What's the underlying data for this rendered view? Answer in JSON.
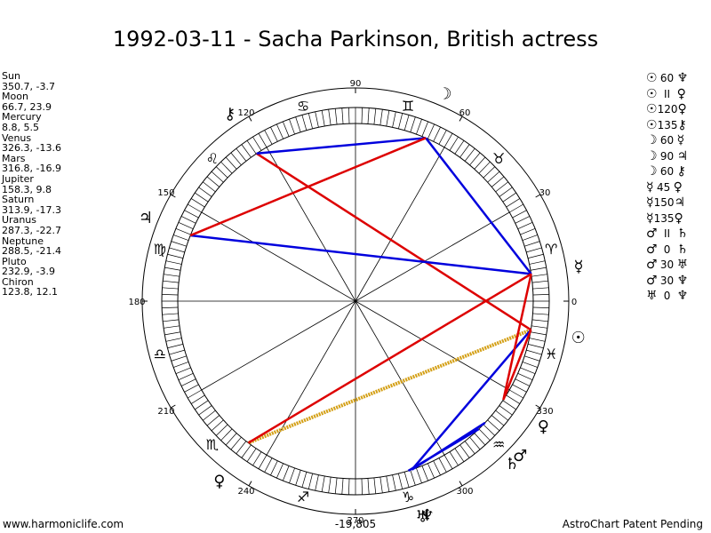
{
  "title": "1992-03-11 - Sacha Parkinson, British actress",
  "planets": [
    {
      "name": "Sun",
      "position": "350.7, -3.7",
      "lon": 350.7,
      "glyph": "☉"
    },
    {
      "name": "Moon",
      "position": "66.7, 23.9",
      "lon": 66.7,
      "glyph": "☽"
    },
    {
      "name": "Mercury",
      "position": "8.8, 5.5",
      "lon": 8.8,
      "glyph": "☿"
    },
    {
      "name": "Venus",
      "position": "326.3, -13.6",
      "lon": 326.3,
      "glyph": "♀"
    },
    {
      "name": "Mars",
      "position": "316.8, -16.9",
      "lon": 316.8,
      "glyph": "♂"
    },
    {
      "name": "Jupiter",
      "position": "158.3, 9.8",
      "lon": 158.3,
      "glyph": "♃"
    },
    {
      "name": "Saturn",
      "position": "313.9, -17.3",
      "lon": 313.9,
      "glyph": "♄"
    },
    {
      "name": "Uranus",
      "position": "287.3, -22.7",
      "lon": 287.3,
      "glyph": "♅"
    },
    {
      "name": "Neptune",
      "position": "288.5, -21.4",
      "lon": 288.5,
      "glyph": "♆"
    },
    {
      "name": "Pluto",
      "position": "232.9, -3.9",
      "lon": 232.9,
      "glyph": "♀"
    },
    {
      "name": "Chiron",
      "position": "123.8, 12.1",
      "lon": 123.8,
      "glyph": "⚷"
    }
  ],
  "aspects": [
    {
      "p1": "☉",
      "aspect": "60",
      "p2": "♆",
      "color": "#0000dd"
    },
    {
      "p1": "☉",
      "aspect": "II",
      "p2": "♀",
      "color": "#dd0000"
    },
    {
      "p1": "☉",
      "aspect": "120",
      "p2": "♀",
      "color": "#0000dd"
    },
    {
      "p1": "☉",
      "aspect": "135",
      "p2": "⚷",
      "color": "#dd0000"
    },
    {
      "p1": "☽",
      "aspect": "60",
      "p2": "☿",
      "color": "#0000dd"
    },
    {
      "p1": "☽",
      "aspect": "90",
      "p2": "♃",
      "color": "#dd0000"
    },
    {
      "p1": "☽",
      "aspect": "60",
      "p2": "⚷",
      "color": "#0000dd"
    },
    {
      "p1": "☿",
      "aspect": "45",
      "p2": "♀",
      "color": "#dd0000"
    },
    {
      "p1": "☿",
      "aspect": "150",
      "p2": "♃",
      "color": "#0000dd"
    },
    {
      "p1": "☿",
      "aspect": "135",
      "p2": "♀",
      "color": "#dd0000"
    },
    {
      "p1": "♂",
      "aspect": "II",
      "p2": "♄",
      "color": "#dd0000"
    },
    {
      "p1": "♂",
      "aspect": "0",
      "p2": "♄",
      "color": "#dd0000"
    },
    {
      "p1": "♂",
      "aspect": "30",
      "p2": "♅",
      "color": "#0000dd"
    },
    {
      "p1": "♂",
      "aspect": "30",
      "p2": "♆",
      "color": "#0000dd"
    },
    {
      "p1": "♅",
      "aspect": "0",
      "p2": "♆",
      "color": "#dd0000"
    }
  ],
  "wheel": {
    "degree_labels": [
      "0",
      "30",
      "60",
      "90",
      "120",
      "150",
      "180",
      "210",
      "240",
      "270",
      "300",
      "330"
    ],
    "degree_values": [
      0,
      30,
      60,
      90,
      120,
      150,
      180,
      210,
      240,
      270,
      300,
      330
    ],
    "signs": [
      "♈",
      "♉",
      "♊",
      "♋",
      "♌",
      "♍",
      "♎",
      "♏",
      "♐",
      "♑",
      "♒",
      "♓"
    ],
    "sign_names": [
      "aries-glyph",
      "taurus-glyph",
      "gemini-glyph",
      "cancer-glyph",
      "leo-glyph",
      "virgo-glyph",
      "libra-glyph",
      "scorpio-glyph",
      "sagittarius-glyph",
      "capricorn-glyph",
      "aquarius-glyph",
      "pisces-glyph"
    ]
  },
  "aspect_lines": [
    {
      "from": "Sun",
      "to": "Pluto",
      "color": "#d4a017",
      "style": "dotted-thick"
    },
    {
      "from": "Sun",
      "to": "Neptune",
      "color": "#0000dd"
    },
    {
      "from": "Sun",
      "to": "Venus",
      "color": "#dd0000"
    },
    {
      "from": "Sun",
      "to": "Chiron",
      "color": "#dd0000"
    },
    {
      "from": "Moon",
      "to": "Mercury",
      "color": "#0000dd"
    },
    {
      "from": "Moon",
      "to": "Chiron",
      "color": "#0000dd"
    },
    {
      "from": "Mercury",
      "to": "Jupiter",
      "color": "#0000dd"
    },
    {
      "from": "Mercury",
      "to": "Pluto",
      "color": "#dd0000"
    },
    {
      "from": "Jupiter",
      "to": "Moon",
      "color": "#dd0000"
    },
    {
      "from": "Saturn",
      "to": "Uranus",
      "color": "#0000dd"
    },
    {
      "from": "Mars",
      "to": "Neptune",
      "color": "#0000dd"
    },
    {
      "from": "Venus",
      "to": "Mercury",
      "color": "#dd0000"
    }
  ],
  "footer": {
    "left": "www.harmoniclife.com",
    "center": "-19,805",
    "right": "AstroChart Patent Pending"
  }
}
